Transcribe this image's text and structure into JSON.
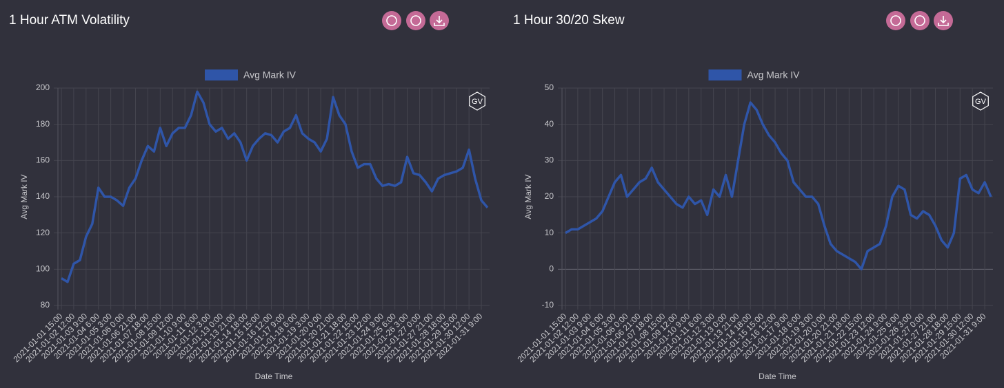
{
  "chart_data": [
    {
      "type": "line",
      "title": "1 Hour ATM Volatility",
      "logo": "GV",
      "ylabel": "Avg Mark IV",
      "xlabel": "Date Time",
      "categories": [
        "2021-01-01 15:00",
        null,
        "2021-01-02 12:00",
        null,
        "2021-01-03 9:00",
        null,
        "2021-01-04 6:00",
        null,
        "2021-01-05 3:00",
        null,
        "2021-01-06 0:00",
        null,
        "2021-01-06 21:00",
        null,
        "2021-01-07 18:00",
        null,
        "2021-01-08 15:00",
        null,
        "2021-01-09 12:00",
        null,
        "2021-01-10 9:00",
        null,
        "2021-01-11 6:00",
        null,
        "2021-01-12 3:00",
        null,
        "2021-01-13 0:00",
        null,
        "2021-01-13 21:00",
        null,
        "2021-01-14 18:00",
        null,
        "2021-01-15 15:00",
        null,
        "2021-01-16 12:00",
        null,
        "2021-01-17 9:00",
        null,
        "2021-01-18 6:00",
        null,
        "2021-01-19 3:00",
        null,
        "2021-01-20 0:00",
        null,
        "2021-01-20 21:00",
        null,
        "2021-01-21 18:00",
        null,
        "2021-01-22 15:00",
        null,
        "2021-01-23 12:00",
        null,
        "2021-01-24 9:00",
        null,
        "2021-01-25 6:00",
        null,
        "2021-01-26 3:00",
        null,
        "2021-01-27 0:00",
        null,
        "2021-01-27 21:00",
        null,
        "2021-01-28 18:00",
        null,
        "2021-01-29 15:00",
        null,
        "2021-01-30 12:00",
        null,
        "2021-01-31 9:00",
        null
      ],
      "series": [
        {
          "name": "Avg Mark IV",
          "color": "#2f55a8",
          "values": [
            95,
            93,
            103,
            105,
            118,
            125,
            145,
            140,
            140,
            138,
            135,
            145,
            150,
            160,
            168,
            165,
            178,
            168,
            175,
            178,
            178,
            185,
            198,
            192,
            180,
            176,
            178,
            172,
            175,
            170,
            160,
            168,
            172,
            175,
            174,
            170,
            176,
            178,
            185,
            175,
            172,
            170,
            165,
            172,
            195,
            185,
            180,
            165,
            156,
            158,
            158,
            150,
            146,
            147,
            146,
            148,
            162,
            153,
            152,
            148,
            143,
            150,
            152,
            153,
            154,
            156,
            166,
            150,
            138,
            134
          ]
        }
      ],
      "ylim": [
        80,
        200
      ],
      "yticks": [
        80,
        100,
        120,
        140,
        160,
        180,
        200
      ],
      "grid": true
    },
    {
      "type": "line",
      "title": "1 Hour 30/20 Skew",
      "logo": "GV",
      "ylabel": "Avg Mark IV",
      "xlabel": "Date Time",
      "categories": [
        "2021-01-01 15:00",
        null,
        "2021-01-02 12:00",
        null,
        "2021-01-03 9:00",
        null,
        "2021-01-04 6:00",
        null,
        "2021-01-05 3:00",
        null,
        "2021-01-06 0:00",
        null,
        "2021-01-06 21:00",
        null,
        "2021-01-07 18:00",
        null,
        "2021-01-08 15:00",
        null,
        "2021-01-09 12:00",
        null,
        "2021-01-10 9:00",
        null,
        "2021-01-11 6:00",
        null,
        "2021-01-12 3:00",
        null,
        "2021-01-13 0:00",
        null,
        "2021-01-13 21:00",
        null,
        "2021-01-14 18:00",
        null,
        "2021-01-15 15:00",
        null,
        "2021-01-16 12:00",
        null,
        "2021-01-17 9:00",
        null,
        "2021-01-18 6:00",
        null,
        "2021-01-19 3:00",
        null,
        "2021-01-20 0:00",
        null,
        "2021-01-20 21:00",
        null,
        "2021-01-21 18:00",
        null,
        "2021-01-22 15:00",
        null,
        "2021-01-23 12:00",
        null,
        "2021-01-24 9:00",
        null,
        "2021-01-25 6:00",
        null,
        "2021-01-26 3:00",
        null,
        "2021-01-27 0:00",
        null,
        "2021-01-27 21:00",
        null,
        "2021-01-28 18:00",
        null,
        "2021-01-29 15:00",
        null,
        "2021-01-30 12:00",
        null,
        "2021-01-31 9:00",
        null
      ],
      "series": [
        {
          "name": "Avg Mark IV",
          "color": "#2f55a8",
          "values": [
            10,
            11,
            11,
            12,
            13,
            14,
            16,
            20,
            24,
            26,
            20,
            22,
            24,
            25,
            28,
            24,
            22,
            20,
            18,
            17,
            20,
            18,
            19,
            15,
            22,
            20,
            26,
            20,
            30,
            40,
            46,
            44,
            40,
            37,
            35,
            32,
            30,
            24,
            22,
            20,
            20,
            18,
            12,
            7,
            5,
            4,
            3,
            2,
            0,
            5,
            6,
            7,
            12,
            20,
            23,
            22,
            15,
            14,
            16,
            15,
            12,
            8,
            6,
            10,
            25,
            26,
            22,
            21,
            24,
            20
          ]
        }
      ],
      "ylim": [
        -10,
        50
      ],
      "yticks": [
        -10,
        0,
        10,
        20,
        30,
        40,
        50
      ],
      "grid": true
    }
  ]
}
